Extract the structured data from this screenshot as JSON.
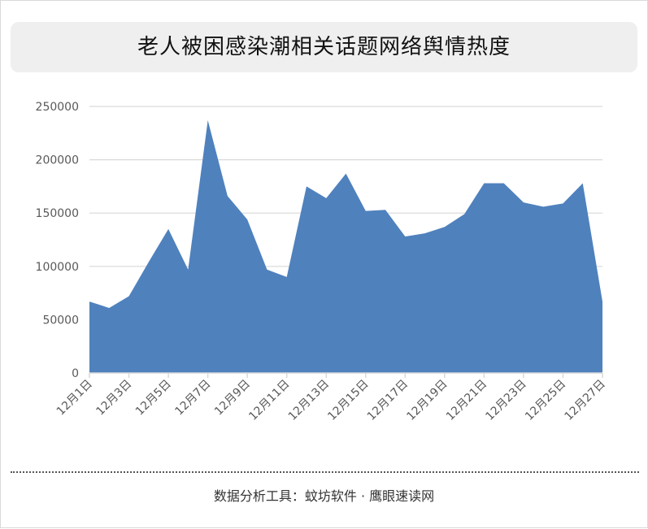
{
  "title": "老人被困感染潮相关话题网络舆情热度",
  "footer": "数据分析工具：蚊坊软件 · 鹰眼速读网",
  "colors": {
    "area": "#4f81bd",
    "grid": "#d9d9d9",
    "axis_text": "#595959"
  },
  "chart_data": {
    "type": "area",
    "title": "老人被困感染潮相关话题网络舆情热度",
    "xlabel": "",
    "ylabel": "",
    "ylim": [
      0,
      250000
    ],
    "yticks": [
      0,
      50000,
      100000,
      150000,
      200000,
      250000
    ],
    "grid": true,
    "legend": "none",
    "x": [
      "12月1日",
      "12月2日",
      "12月3日",
      "12月4日",
      "12月5日",
      "12月6日",
      "12月7日",
      "12月8日",
      "12月9日",
      "12月10日",
      "12月11日",
      "12月12日",
      "12月13日",
      "12月14日",
      "12月15日",
      "12月16日",
      "12月17日",
      "12月18日",
      "12月19日",
      "12月20日",
      "12月21日",
      "12月22日",
      "12月23日",
      "12月24日",
      "12月25日",
      "12月26日",
      "12月27日"
    ],
    "x_tick_labels": [
      "12月1日",
      "12月3日",
      "12月5日",
      "12月7日",
      "12月9日",
      "12月11日",
      "12月13日",
      "12月15日",
      "12月17日",
      "12月19日",
      "12月21日",
      "12月23日",
      "12月25日",
      "12月27日"
    ],
    "values": [
      67000,
      61000,
      72000,
      104000,
      135000,
      97000,
      237000,
      166000,
      144000,
      97000,
      90000,
      175000,
      164000,
      187000,
      152000,
      153000,
      128000,
      131000,
      137000,
      149000,
      178000,
      178000,
      160000,
      156000,
      159000,
      178000,
      67000
    ]
  }
}
